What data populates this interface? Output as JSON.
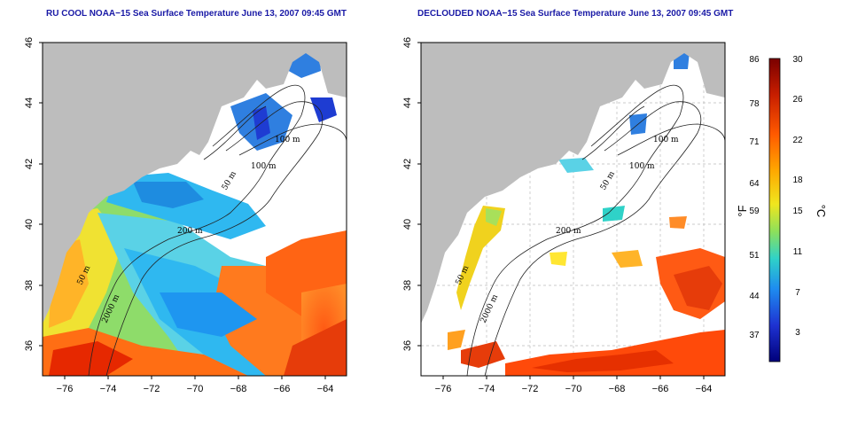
{
  "titles": {
    "left": "RU COOL NOAA−15 Sea Surface Temperature June 13, 2007 09:45 GMT",
    "right": "DECLOUDED NOAA−15 Sea Surface Temperature June 13, 2007 09:45 GMT"
  },
  "map_axes": {
    "lon_ticks": [
      "−76",
      "−74",
      "−72",
      "−70",
      "−68",
      "−66",
      "−64"
    ],
    "lat_ticks": [
      "46",
      "44",
      "42",
      "40",
      "38",
      "36"
    ],
    "lon_range": [
      -77,
      -63
    ],
    "lat_range": [
      35,
      46
    ]
  },
  "isobath_labels": [
    "100 m",
    "100 m",
    "50 m",
    "200 m",
    "50 m",
    "2000 m"
  ],
  "colorbar": {
    "fahrenheit_ticks": [
      "86",
      "78",
      "71",
      "64",
      "59",
      "51",
      "44",
      "37"
    ],
    "celsius_ticks": [
      "30",
      "26",
      "22",
      "18",
      "15",
      "11",
      "7",
      "3"
    ],
    "fahrenheit_unit": "°F",
    "celsius_unit": "°C",
    "colors": [
      "#7a0000",
      "#c81e00",
      "#ff5a00",
      "#ffa800",
      "#f0e61e",
      "#8ee05a",
      "#2fd2c8",
      "#1e8cf0",
      "#1e32d2",
      "#00007a"
    ]
  },
  "colors": {
    "land": "#bdbdbd",
    "title": "#1a1aa6"
  }
}
